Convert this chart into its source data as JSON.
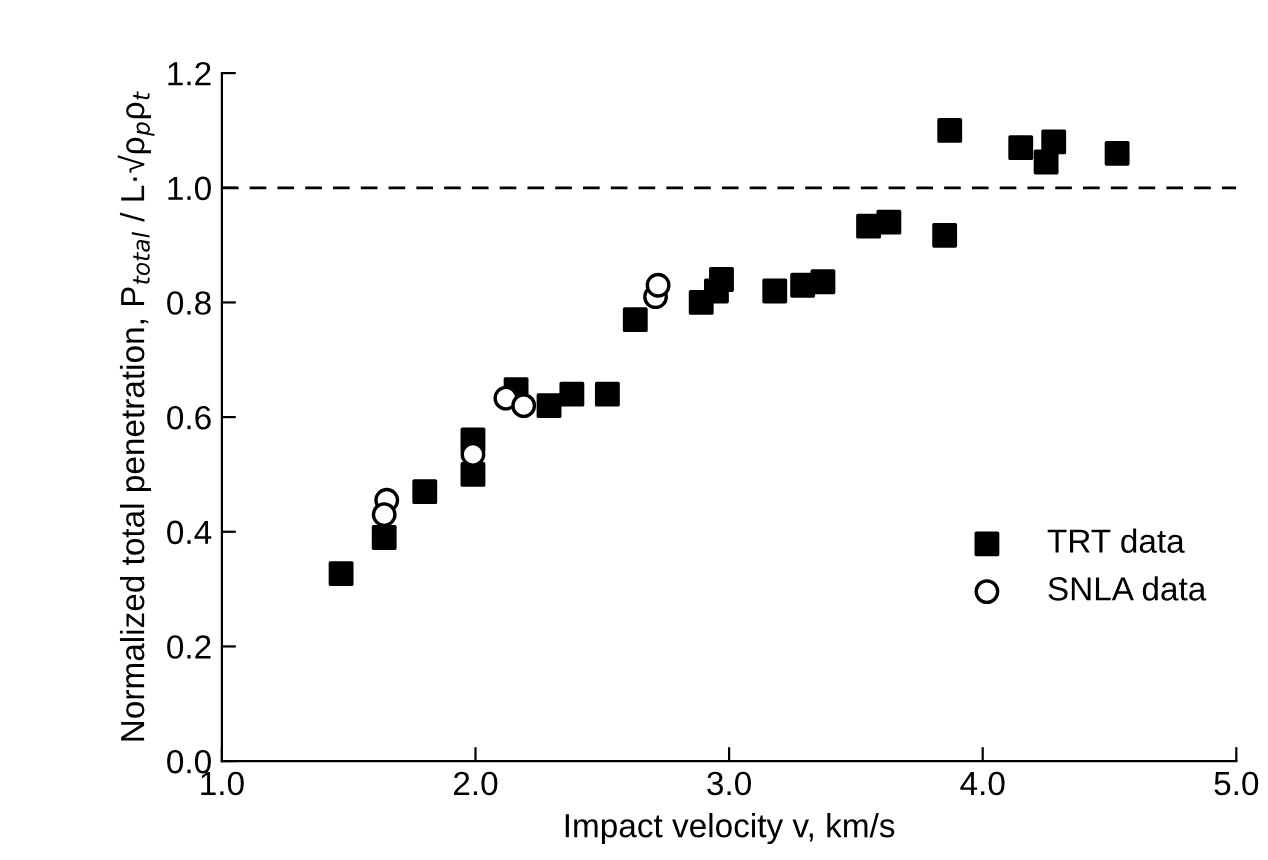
{
  "chart_data": {
    "type": "scatter",
    "xlabel": "Impact velocity v, km/s",
    "ylabel": "Normalized total penetration, P$_{total}$ / L·√ρ$_{p}$ρ$_{t}$",
    "series": [
      {
        "name": "TRT data",
        "color": "#000000",
        "marker": "square",
        "x": [
          1.47,
          1.64,
          1.8,
          1.99,
          1.99,
          2.16,
          2.29,
          2.38,
          2.52,
          2.63,
          2.89,
          2.95,
          2.97,
          3.18,
          3.29,
          3.37,
          3.55,
          3.63,
          3.85,
          3.87,
          4.15,
          4.25,
          4.28,
          4.53
        ],
        "values": [
          0.327,
          0.39,
          0.47,
          0.5,
          0.56,
          0.648,
          0.62,
          0.64,
          0.64,
          0.77,
          0.8,
          0.82,
          0.84,
          0.82,
          0.83,
          0.836,
          0.933,
          0.94,
          0.917,
          1.1,
          1.07,
          1.045,
          1.08,
          1.06
        ]
      },
      {
        "name": "SNLA data",
        "color": "#000000",
        "marker": "circle",
        "x": [
          1.65,
          1.64,
          1.99,
          2.12,
          2.19,
          2.71,
          2.72
        ],
        "values": [
          0.455,
          0.43,
          0.535,
          0.633,
          0.62,
          0.81,
          0.83
        ]
      }
    ],
    "xlim": [
      1.0,
      5.0
    ],
    "ylim": [
      0.0,
      1.2
    ],
    "xticks": [
      {
        "value": 1.0,
        "label": "1.0"
      },
      {
        "value": 2.0,
        "label": "2.0"
      },
      {
        "value": 3.0,
        "label": "3.0"
      },
      {
        "value": 4.0,
        "label": "4.0"
      },
      {
        "value": 5.0,
        "label": "5.0"
      }
    ],
    "yticks": [
      {
        "value": 0.0,
        "label": "0.0"
      },
      {
        "value": 0.2,
        "label": "0.2"
      },
      {
        "value": 0.4,
        "label": "0.4"
      },
      {
        "value": 0.6,
        "label": "0.6"
      },
      {
        "value": 0.8,
        "label": "0.8"
      },
      {
        "value": 1.0,
        "label": "1.0"
      },
      {
        "value": 1.2,
        "label": "1.2"
      }
    ],
    "ref_lines": [
      {
        "axis": "y",
        "value": 1.0,
        "line_style": "dashed",
        "color": "#000000"
      }
    ],
    "grid": false,
    "legend": "bottom right"
  }
}
